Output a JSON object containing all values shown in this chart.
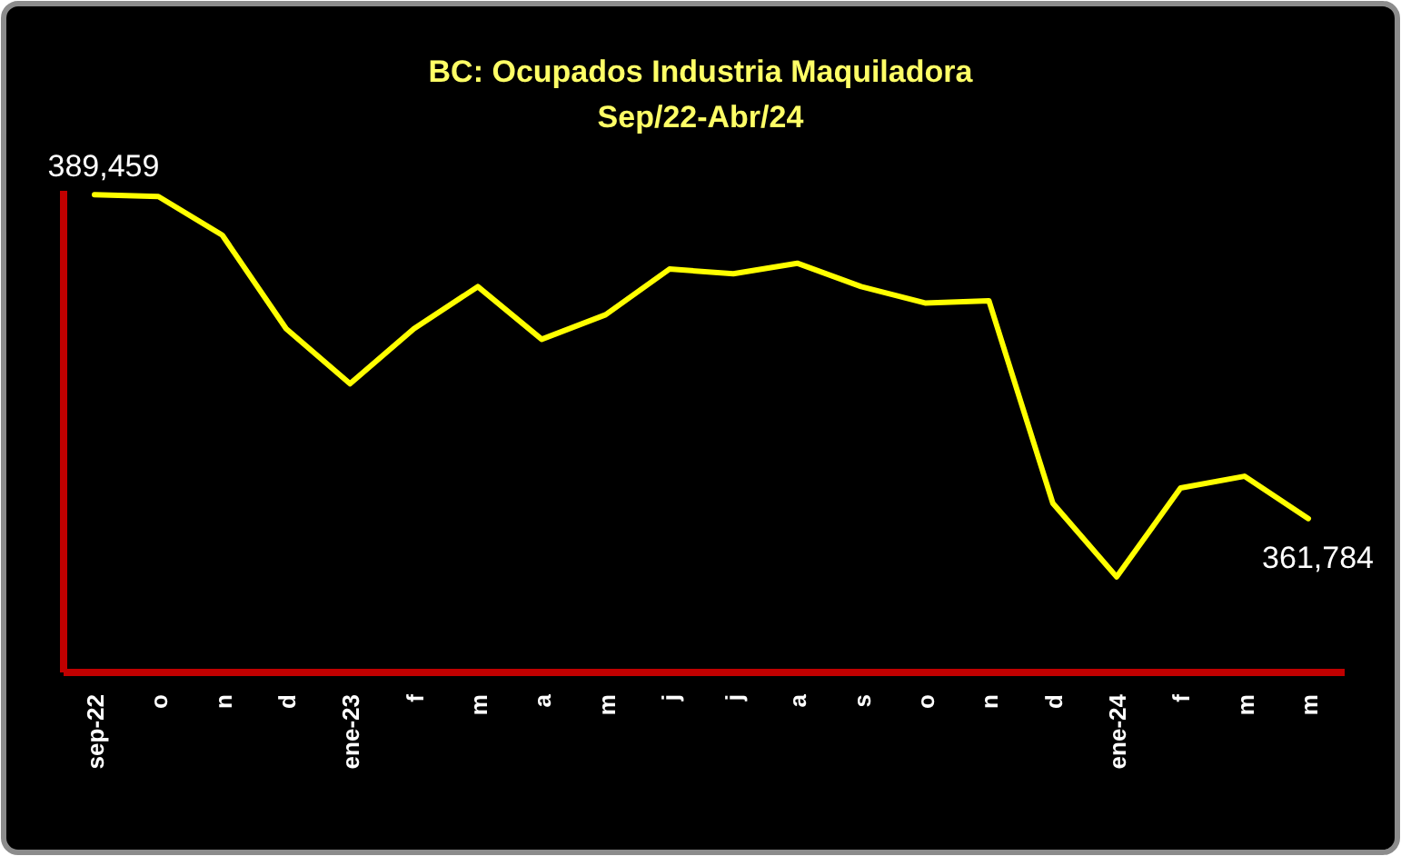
{
  "chart_data": {
    "type": "line",
    "title": "BC: Ocupados Industria Maquiladora",
    "subtitle": "Sep/22-Abr/24",
    "categories": [
      "sep-22",
      "o",
      "n",
      "d",
      "ene-23",
      "f",
      "m",
      "a",
      "m",
      "j",
      "j",
      "a",
      "s",
      "o",
      "n",
      "d",
      "ene-24",
      "f",
      "m",
      "m"
    ],
    "series": [
      {
        "color": "#ffff00",
        "values": [
          389459,
          389300,
          386000,
          378000,
          373300,
          378000,
          381600,
          377100,
          379200,
          383100,
          382700,
          383600,
          381600,
          380200,
          380400,
          363100,
          356800,
          364400,
          365400,
          361784
        ],
        "value_labels": [
          "389,459",
          null,
          null,
          null,
          null,
          null,
          null,
          null,
          null,
          null,
          null,
          null,
          null,
          null,
          null,
          null,
          null,
          null,
          null,
          "361,784"
        ]
      }
    ],
    "marker": "none",
    "line_style": "solid",
    "tick_labels": "x"
  }
}
